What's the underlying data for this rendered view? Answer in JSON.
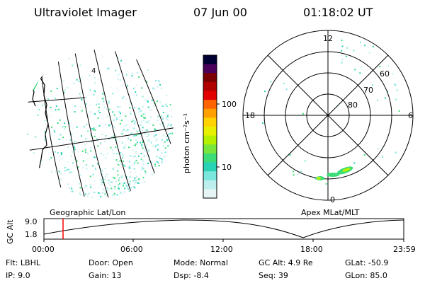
{
  "header": {
    "instrument": "Ultraviolet Imager",
    "date": "07 Jun 00",
    "time": "01:18:02 UT"
  },
  "colorbar": {
    "unit_label": "photon cm⁻²s⁻¹",
    "ticks": [
      "100",
      "10"
    ],
    "colors": [
      "#000033",
      "#4b005a",
      "#7a0000",
      "#b00000",
      "#e20000",
      "#ff6400",
      "#ffa000",
      "#ffd200",
      "#e6f000",
      "#b4f000",
      "#78e63c",
      "#3cdc78",
      "#28d2b4",
      "#7ae6dc",
      "#bdeeee",
      "#e6f4f4"
    ]
  },
  "left_map": {
    "label": "Geographic Lat/Lon",
    "marker": "4"
  },
  "polar_plot": {
    "label": "Apex MLat/MLT",
    "mlt_labels": {
      "top": "12",
      "left": "18",
      "right": "6",
      "bottom": "0"
    },
    "lat_labels": [
      "60",
      "70",
      "80"
    ]
  },
  "altitude_strip": {
    "axis_label": "GC Alt",
    "y_ticks": [
      "9.0",
      "1.8"
    ],
    "x_ticks": [
      "00:00",
      "06:00",
      "12:00",
      "18:00",
      "23:59"
    ],
    "current_marker_color": "#ff0000"
  },
  "info": {
    "flt": "Flt: LBHL",
    "ip": "IP: 9.0",
    "door": "Door: Open",
    "gain": "Gain: 13",
    "mode": "Mode: Normal",
    "dsp": "Dsp:   -8.4",
    "gc_alt": "GC Alt: 4.9 Re",
    "seq": "Seq: 39",
    "glat": "GLat: -50.9",
    "glon": "GLon: 85.0"
  }
}
